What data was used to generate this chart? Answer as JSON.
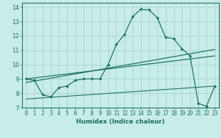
{
  "title": "",
  "xlabel": "Humidex (Indice chaleur)",
  "background_color": "#c8ece8",
  "grid_color": "#a8d8d0",
  "line_color": "#1a6e62",
  "xlim_min": -0.5,
  "xlim_max": 23.5,
  "ylim_min": 7,
  "ylim_max": 14.3,
  "x_ticks": [
    0,
    1,
    2,
    3,
    4,
    5,
    6,
    7,
    8,
    9,
    10,
    11,
    12,
    13,
    14,
    15,
    16,
    17,
    18,
    19,
    20,
    21,
    22,
    23
  ],
  "y_ticks": [
    7,
    8,
    9,
    10,
    11,
    12,
    13,
    14
  ],
  "curve1_x": [
    0,
    1,
    2,
    3,
    4,
    5,
    6,
    7,
    8,
    9,
    10,
    11,
    12,
    13,
    14,
    15,
    16,
    17,
    18,
    19,
    20,
    21,
    22,
    23
  ],
  "curve1_y": [
    9.0,
    8.9,
    7.9,
    7.75,
    8.4,
    8.5,
    8.9,
    9.0,
    9.0,
    9.0,
    10.0,
    11.4,
    12.1,
    13.35,
    13.85,
    13.8,
    13.25,
    11.9,
    11.8,
    11.1,
    10.6,
    7.3,
    7.1,
    8.5
  ],
  "curve2_x": [
    0,
    23
  ],
  "curve2_y": [
    9.0,
    10.6
  ],
  "curve3_x": [
    0,
    23
  ],
  "curve3_y": [
    8.75,
    11.05
  ],
  "curve4_x": [
    0,
    23
  ],
  "curve4_y": [
    7.6,
    8.5
  ],
  "tick_fontsize": 5.5,
  "xlabel_fontsize": 6.5
}
